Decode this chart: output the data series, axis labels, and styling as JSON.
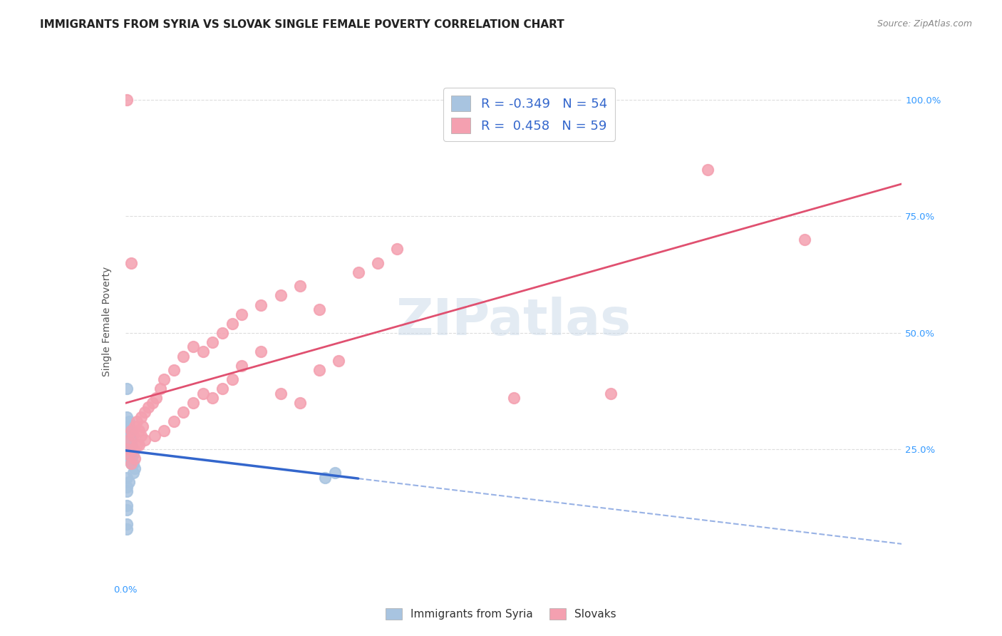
{
  "title": "IMMIGRANTS FROM SYRIA VS SLOVAK SINGLE FEMALE POVERTY CORRELATION CHART",
  "source": "Source: ZipAtlas.com",
  "ylabel": "Single Female Poverty",
  "ylabel_right_ticks": [
    "100.0%",
    "75.0%",
    "50.0%",
    "25.0%"
  ],
  "ylabel_right_vals": [
    1.0,
    0.75,
    0.5,
    0.25
  ],
  "x_min": 0.0,
  "x_max": 0.4,
  "y_min": 0.0,
  "y_max": 1.05,
  "series1_label": "Immigrants from Syria",
  "series1_color": "#a8c4e0",
  "series1_line_color": "#3366cc",
  "series1_R": -0.349,
  "series1_N": 54,
  "series1_x": [
    0.001,
    0.002,
    0.003,
    0.001,
    0.002,
    0.004,
    0.001,
    0.001,
    0.002,
    0.003,
    0.001,
    0.002,
    0.001,
    0.003,
    0.002,
    0.001,
    0.004,
    0.002,
    0.001,
    0.001,
    0.003,
    0.002,
    0.001,
    0.005,
    0.002,
    0.001,
    0.001,
    0.002,
    0.003,
    0.001,
    0.001,
    0.002,
    0.001,
    0.001,
    0.002,
    0.003,
    0.002,
    0.001,
    0.004,
    0.001,
    0.001,
    0.002,
    0.001,
    0.003,
    0.001,
    0.002,
    0.001,
    0.001,
    0.103,
    0.108,
    0.001,
    0.001,
    0.001,
    0.001
  ],
  "series1_y": [
    0.28,
    0.3,
    0.27,
    0.25,
    0.26,
    0.24,
    0.28,
    0.29,
    0.3,
    0.27,
    0.25,
    0.24,
    0.26,
    0.23,
    0.27,
    0.25,
    0.22,
    0.28,
    0.29,
    0.3,
    0.26,
    0.25,
    0.27,
    0.21,
    0.28,
    0.24,
    0.26,
    0.23,
    0.22,
    0.27,
    0.28,
    0.29,
    0.26,
    0.25,
    0.24,
    0.23,
    0.27,
    0.28,
    0.2,
    0.38,
    0.3,
    0.31,
    0.32,
    0.29,
    0.19,
    0.18,
    0.17,
    0.16,
    0.19,
    0.2,
    0.13,
    0.12,
    0.09,
    0.08
  ],
  "series2_label": "Slovaks",
  "series2_color": "#f4a0b0",
  "series2_line_color": "#e05070",
  "series2_R": 0.458,
  "series2_N": 59,
  "series2_x": [
    0.001,
    0.002,
    0.003,
    0.004,
    0.005,
    0.006,
    0.007,
    0.008,
    0.009,
    0.01,
    0.012,
    0.014,
    0.016,
    0.018,
    0.02,
    0.025,
    0.03,
    0.035,
    0.04,
    0.045,
    0.05,
    0.055,
    0.06,
    0.07,
    0.08,
    0.09,
    0.1,
    0.11,
    0.12,
    0.13,
    0.14,
    0.003,
    0.005,
    0.007,
    0.01,
    0.015,
    0.02,
    0.025,
    0.03,
    0.035,
    0.04,
    0.045,
    0.05,
    0.055,
    0.06,
    0.07,
    0.08,
    0.09,
    0.1,
    0.2,
    0.25,
    0.3,
    0.35,
    0.002,
    0.004,
    0.006,
    0.008,
    0.001,
    0.003
  ],
  "series2_y": [
    0.25,
    0.27,
    0.29,
    0.28,
    0.3,
    0.31,
    0.29,
    0.32,
    0.3,
    0.33,
    0.34,
    0.35,
    0.36,
    0.38,
    0.4,
    0.42,
    0.45,
    0.47,
    0.46,
    0.48,
    0.5,
    0.52,
    0.54,
    0.56,
    0.58,
    0.6,
    0.42,
    0.44,
    0.63,
    0.65,
    0.68,
    0.22,
    0.23,
    0.26,
    0.27,
    0.28,
    0.29,
    0.31,
    0.33,
    0.35,
    0.37,
    0.36,
    0.38,
    0.4,
    0.43,
    0.46,
    0.37,
    0.35,
    0.55,
    0.36,
    0.37,
    0.85,
    0.7,
    0.24,
    0.25,
    0.26,
    0.28,
    1.0,
    0.65
  ],
  "watermark": "ZIPatlas",
  "background_color": "#ffffff",
  "grid_color": "#dddddd",
  "title_fontsize": 11,
  "axis_label_fontsize": 10,
  "tick_fontsize": 9.5,
  "source_fontsize": 9
}
